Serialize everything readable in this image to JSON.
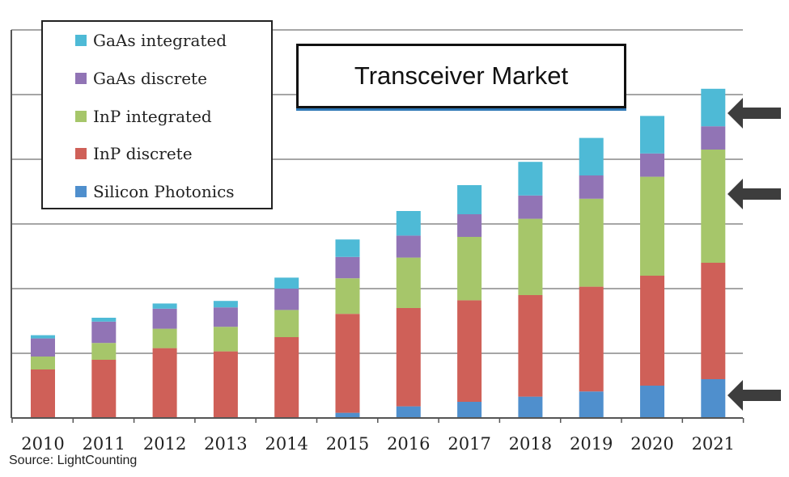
{
  "chart_data": {
    "type": "bar",
    "stacked": true,
    "title": "Transceiver Market",
    "xlabel": "",
    "ylabel": "",
    "ylim": [
      0,
      6
    ],
    "grid": true,
    "categories": [
      "2010",
      "2011",
      "2012",
      "2013",
      "2014",
      "2015",
      "2016",
      "2017",
      "2018",
      "2019",
      "2020",
      "2021"
    ],
    "series": [
      {
        "name": "Silicon Photonics",
        "color": "#4f8fcd",
        "values": [
          0,
          0,
          0,
          0,
          0,
          0.08,
          0.18,
          0.25,
          0.33,
          0.41,
          0.5,
          0.6
        ]
      },
      {
        "name": "InP discrete",
        "color": "#cf6058",
        "values": [
          0.75,
          0.9,
          1.08,
          1.03,
          1.25,
          1.53,
          1.52,
          1.57,
          1.57,
          1.62,
          1.7,
          1.8
        ]
      },
      {
        "name": "InP integrated",
        "color": "#a6c66a",
        "values": [
          0.2,
          0.26,
          0.3,
          0.38,
          0.42,
          0.55,
          0.78,
          0.98,
          1.18,
          1.36,
          1.53,
          1.75
        ]
      },
      {
        "name": "GaAs discrete",
        "color": "#9174b5",
        "values": [
          0.28,
          0.33,
          0.31,
          0.3,
          0.33,
          0.33,
          0.34,
          0.35,
          0.36,
          0.36,
          0.36,
          0.36
        ]
      },
      {
        "name": "GaAs integrated",
        "color": "#4ebad6",
        "values": [
          0.05,
          0.06,
          0.08,
          0.1,
          0.17,
          0.27,
          0.38,
          0.45,
          0.52,
          0.58,
          0.58,
          0.58
        ]
      }
    ],
    "legend_order": [
      "GaAs integrated",
      "GaAs discrete",
      "InP integrated",
      "InP discrete",
      "Silicon Photonics"
    ],
    "legend_position": "top-left"
  },
  "source": "Source: LightCounting",
  "arrow_color": "#3d3d3d"
}
